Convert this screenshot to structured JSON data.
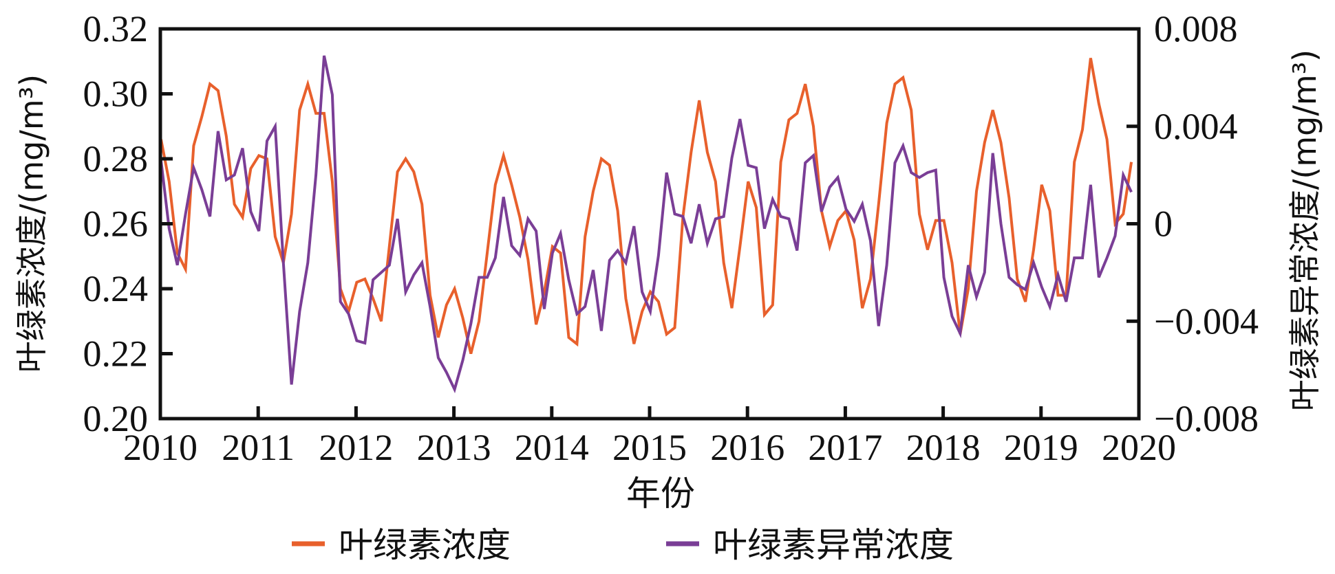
{
  "chart_data": {
    "type": "line",
    "title": "",
    "xlabel": "年份",
    "ylabel": "叶绿素浓度/(mg/m³)",
    "ylabel_right": "叶绿素异常浓度/(mg/m³)",
    "x_ticks": [
      "2010",
      "2011",
      "2012",
      "2013",
      "2014",
      "2015",
      "2016",
      "2017",
      "2018",
      "2019",
      "2020"
    ],
    "y_ticks_left": [
      "0.20",
      "0.22",
      "0.24",
      "0.26",
      "0.28",
      "0.30",
      "0.32"
    ],
    "y_ticks_right": [
      "−0.008",
      "−0.004",
      "0",
      "0.004",
      "0.008"
    ],
    "ylim": [
      0.2,
      0.32
    ],
    "ylim_right": [
      -0.008,
      0.008
    ],
    "xlim": [
      2010,
      2020
    ],
    "x_start": 2010,
    "x_step_months": 1,
    "grid": false,
    "legend_position": "bottom",
    "series": [
      {
        "name": "叶绿素浓度",
        "axis": "left",
        "color": "#E8602C",
        "values": [
          0.286,
          0.273,
          0.251,
          0.246,
          0.284,
          0.293,
          0.303,
          0.301,
          0.287,
          0.266,
          0.262,
          0.277,
          0.281,
          0.28,
          0.256,
          0.248,
          0.263,
          0.295,
          0.303,
          0.294,
          0.294,
          0.273,
          0.24,
          0.233,
          0.242,
          0.243,
          0.237,
          0.23,
          0.253,
          0.276,
          0.28,
          0.276,
          0.266,
          0.238,
          0.225,
          0.235,
          0.24,
          0.231,
          0.22,
          0.23,
          0.251,
          0.272,
          0.281,
          0.272,
          0.262,
          0.249,
          0.229,
          0.239,
          0.253,
          0.251,
          0.225,
          0.223,
          0.256,
          0.27,
          0.28,
          0.278,
          0.264,
          0.237,
          0.223,
          0.233,
          0.239,
          0.236,
          0.226,
          0.228,
          0.262,
          0.282,
          0.298,
          0.282,
          0.273,
          0.248,
          0.234,
          0.253,
          0.273,
          0.265,
          0.232,
          0.235,
          0.279,
          0.292,
          0.294,
          0.303,
          0.29,
          0.264,
          0.253,
          0.261,
          0.264,
          0.255,
          0.234,
          0.243,
          0.266,
          0.291,
          0.303,
          0.305,
          0.295,
          0.263,
          0.252,
          0.261,
          0.261,
          0.248,
          0.226,
          0.24,
          0.27,
          0.285,
          0.295,
          0.285,
          0.268,
          0.243,
          0.236,
          0.252,
          0.272,
          0.264,
          0.238,
          0.238,
          0.279,
          0.289,
          0.311,
          0.297,
          0.286,
          0.26,
          0.263,
          0.279
        ]
      },
      {
        "name": "叶绿素异常浓度",
        "axis": "right",
        "color": "#7A3E96",
        "values": [
          0.0026,
          -0.0002,
          -0.0017,
          0.0004,
          0.0023,
          0.0014,
          0.0003,
          0.0038,
          0.0018,
          0.002,
          0.0031,
          0.0005,
          -0.0003,
          0.0034,
          0.004,
          -0.0016,
          -0.0066,
          -0.0036,
          -0.0016,
          0.002,
          0.0069,
          0.0053,
          -0.0032,
          -0.0037,
          -0.0048,
          -0.0049,
          -0.0023,
          -0.002,
          -0.0017,
          0.0002,
          -0.0028,
          -0.0021,
          -0.0016,
          -0.0034,
          -0.0055,
          -0.0061,
          -0.0068,
          -0.0056,
          -0.0041,
          -0.0022,
          -0.0022,
          -0.0014,
          0.0011,
          -0.0009,
          -0.0013,
          0.0002,
          -0.0003,
          -0.0035,
          -0.0012,
          -0.0004,
          -0.0023,
          -0.0037,
          -0.0034,
          -0.0019,
          -0.0044,
          -0.0015,
          -0.0011,
          -0.0016,
          -0.0001,
          -0.0028,
          -0.0036,
          -0.0013,
          0.0021,
          0.0004,
          0.0003,
          -0.0008,
          0.0008,
          -0.0008,
          0.0002,
          0.0003,
          0.0027,
          0.0043,
          0.0024,
          0.0023,
          -0.0002,
          0.001,
          0.0003,
          0.0002,
          -0.0011,
          0.0025,
          0.0028,
          0.0005,
          0.0015,
          0.0019,
          0.0006,
          0.0001,
          0.0008,
          -0.0007,
          -0.0042,
          -0.0017,
          0.0025,
          0.0032,
          0.0021,
          0.0019,
          0.0021,
          0.0022,
          -0.0022,
          -0.0038,
          -0.0045,
          -0.0017,
          -0.003,
          -0.002,
          0.0029,
          0.0,
          -0.0022,
          -0.0025,
          -0.0027,
          -0.0016,
          -0.0026,
          -0.0034,
          -0.0021,
          -0.0032,
          -0.0014,
          -0.0014,
          0.0016,
          -0.0022,
          -0.0014,
          -0.0005,
          0.002,
          0.0013
        ]
      }
    ]
  },
  "legend": {
    "items": [
      {
        "label": "叶绿素浓度",
        "color": "#E8602C"
      },
      {
        "label": "叶绿素异常浓度",
        "color": "#7A3E96"
      }
    ]
  }
}
